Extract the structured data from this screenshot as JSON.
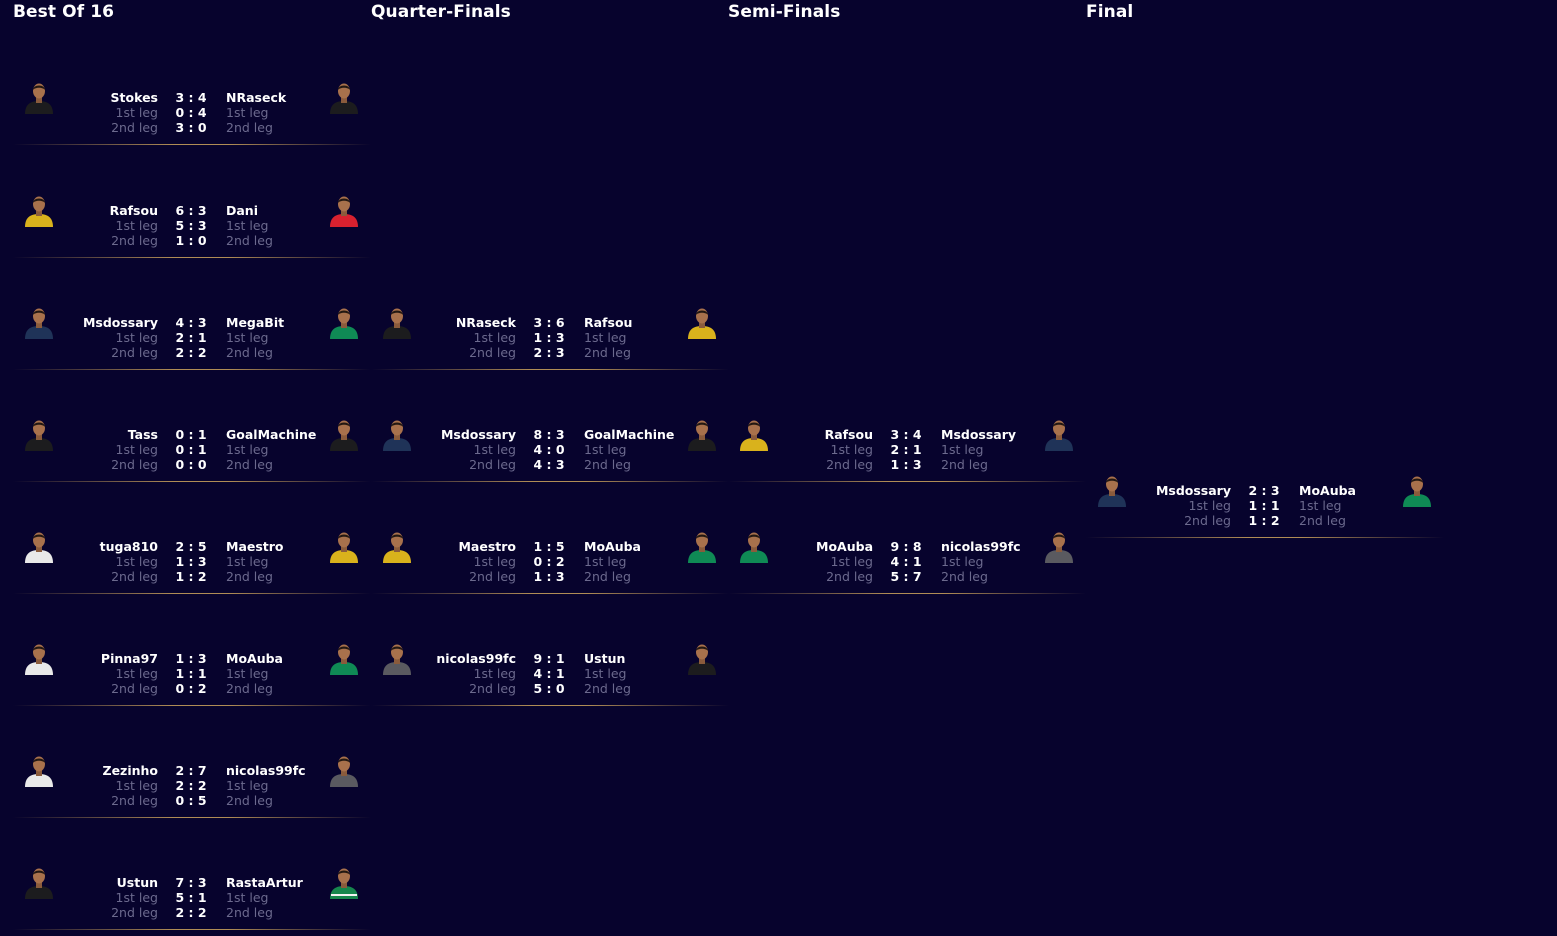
{
  "rounds": [
    {
      "title": "Best Of 16",
      "matches": [
        {
          "home": {
            "name": "Stokes",
            "kit": "black"
          },
          "away": {
            "name": "NRaseck",
            "kit": "black"
          },
          "aggregate": "3 : 4",
          "leg1_score": "0 : 4",
          "leg2_score": "3 : 0"
        },
        {
          "home": {
            "name": "Rafsou",
            "kit": "yellow-black"
          },
          "away": {
            "name": "Dani",
            "kit": "red"
          },
          "aggregate": "6 : 3",
          "leg1_score": "5 : 3",
          "leg2_score": "1 : 0"
        },
        {
          "home": {
            "name": "Msdossary",
            "kit": "navy"
          },
          "away": {
            "name": "MegaBit",
            "kit": "green"
          },
          "aggregate": "4 : 3",
          "leg1_score": "2 : 1",
          "leg2_score": "2 : 2"
        },
        {
          "home": {
            "name": "Tass",
            "kit": "black"
          },
          "away": {
            "name": "GoalMachine",
            "kit": "black"
          },
          "aggregate": "0 : 1",
          "leg1_score": "0 : 1",
          "leg2_score": "0 : 0"
        },
        {
          "home": {
            "name": "tuga810",
            "kit": "white"
          },
          "away": {
            "name": "Maestro",
            "kit": "yellow-black"
          },
          "aggregate": "2 : 5",
          "leg1_score": "1 : 3",
          "leg2_score": "1 : 2"
        },
        {
          "home": {
            "name": "Pinna97",
            "kit": "white"
          },
          "away": {
            "name": "MoAuba",
            "kit": "green"
          },
          "aggregate": "1 : 3",
          "leg1_score": "1 : 1",
          "leg2_score": "0 : 2"
        },
        {
          "home": {
            "name": "Zezinho",
            "kit": "white"
          },
          "away": {
            "name": "nicolas99fc",
            "kit": "grey"
          },
          "aggregate": "2 : 7",
          "leg1_score": "2 : 2",
          "leg2_score": "0 : 5"
        },
        {
          "home": {
            "name": "Ustun",
            "kit": "black"
          },
          "away": {
            "name": "RastaArtur",
            "kit": "green-white"
          },
          "aggregate": "7 : 3",
          "leg1_score": "5 : 1",
          "leg2_score": "2 : 2"
        }
      ]
    },
    {
      "title": "Quarter-Finals",
      "matches": [
        {
          "home": {
            "name": "NRaseck",
            "kit": "black"
          },
          "away": {
            "name": "Rafsou",
            "kit": "yellow-black"
          },
          "aggregate": "3 : 6",
          "leg1_score": "1 : 3",
          "leg2_score": "2 : 3"
        },
        {
          "home": {
            "name": "Msdossary",
            "kit": "navy"
          },
          "away": {
            "name": "GoalMachine",
            "kit": "black"
          },
          "aggregate": "8 : 3",
          "leg1_score": "4 : 0",
          "leg2_score": "4 : 3"
        },
        {
          "home": {
            "name": "Maestro",
            "kit": "yellow-black"
          },
          "away": {
            "name": "MoAuba",
            "kit": "green"
          },
          "aggregate": "1 : 5",
          "leg1_score": "0 : 2",
          "leg2_score": "1 : 3"
        },
        {
          "home": {
            "name": "nicolas99fc",
            "kit": "grey"
          },
          "away": {
            "name": "Ustun",
            "kit": "black"
          },
          "aggregate": "9 : 1",
          "leg1_score": "4 : 1",
          "leg2_score": "5 : 0"
        }
      ]
    },
    {
      "title": "Semi-Finals",
      "matches": [
        {
          "home": {
            "name": "Rafsou",
            "kit": "yellow-black"
          },
          "away": {
            "name": "Msdossary",
            "kit": "navy"
          },
          "aggregate": "3 : 4",
          "leg1_score": "2 : 1",
          "leg2_score": "1 : 3"
        },
        {
          "home": {
            "name": "MoAuba",
            "kit": "green"
          },
          "away": {
            "name": "nicolas99fc",
            "kit": "grey"
          },
          "aggregate": "9 : 8",
          "leg1_score": "4 : 1",
          "leg2_score": "5 : 7"
        }
      ]
    },
    {
      "title": "Final",
      "matches": [
        {
          "home": {
            "name": "Msdossary",
            "kit": "navy"
          },
          "away": {
            "name": "MoAuba",
            "kit": "green"
          },
          "aggregate": "2 : 3",
          "leg1_score": "1 : 1",
          "leg2_score": "1 : 2"
        }
      ]
    }
  ],
  "leg_labels": {
    "first": "1st leg",
    "second": "2nd leg"
  },
  "colors": {
    "background": "#07032d",
    "separator": "#cea55c",
    "muted_text": "#6c6a8e",
    "kits": {
      "black": "#1c1c1e",
      "yellow-black": "#d9b21c",
      "red": "#d8212f",
      "navy": "#1f3358",
      "green": "#0f8a55",
      "white": "#e9e9e9",
      "grey": "#5a5a60",
      "green-white": "#16864d"
    }
  }
}
